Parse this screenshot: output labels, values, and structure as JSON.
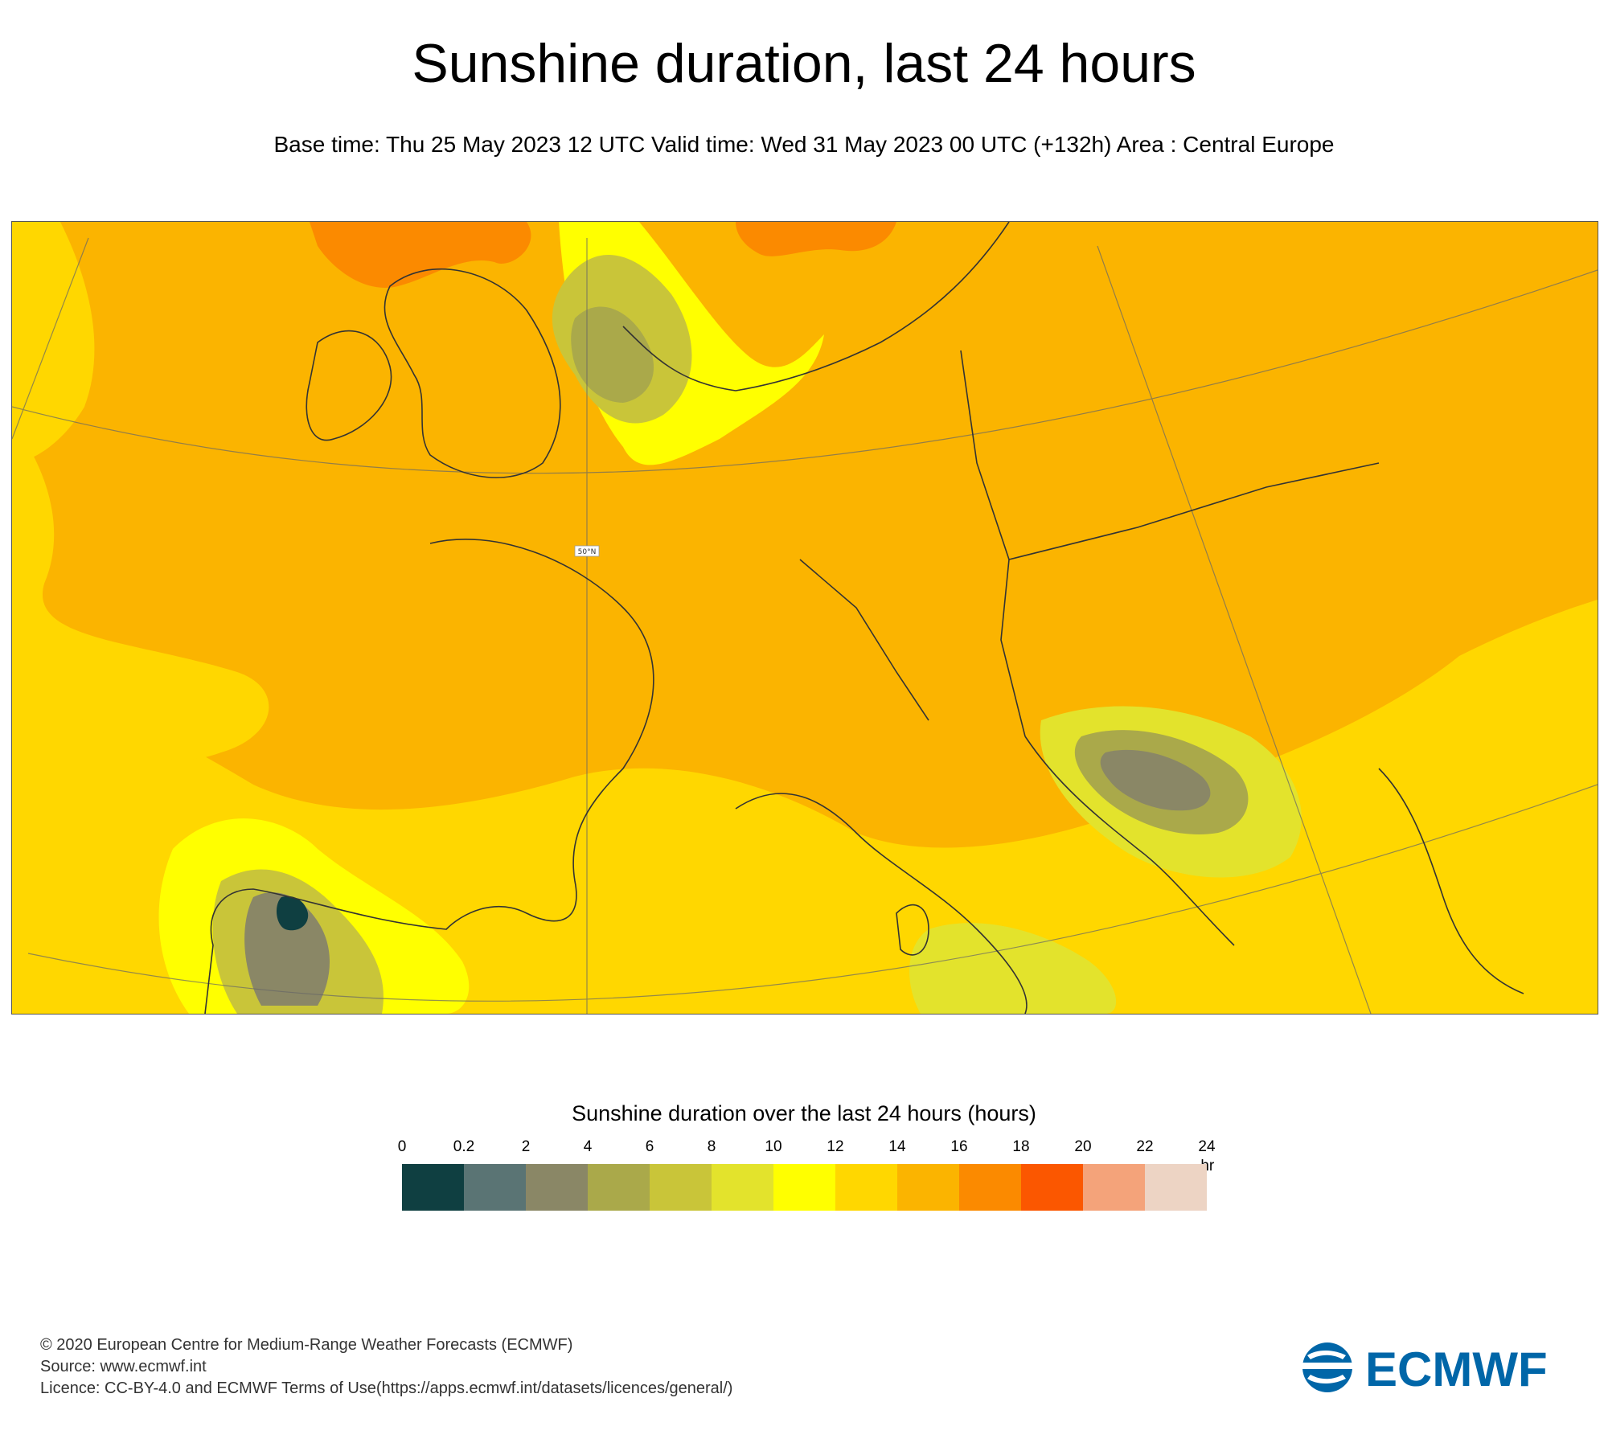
{
  "header": {
    "title": "Sunshine duration, last 24 hours",
    "subtitle": "Base time: Thu 25 May 2023 12 UTC Valid time: Wed 31 May 2023 00 UTC (+132h) Area : Central Europe"
  },
  "map": {
    "area": "Central Europe",
    "latitude_label": "50°N",
    "background_class": "14-16 hr",
    "land_color": "#fbb400"
  },
  "legend": {
    "title": "Sunshine duration over the last 24 hours (hours)",
    "unit": "-hr",
    "ticks": [
      "0",
      "0.2",
      "2",
      "4",
      "6",
      "8",
      "10",
      "12",
      "14",
      "16",
      "18",
      "20",
      "22",
      "24"
    ],
    "colors": [
      "#0f3f41",
      "#5a7474",
      "#8a8766",
      "#aaa94a",
      "#c9c539",
      "#e3e32c",
      "#ffff00",
      "#ffd700",
      "#fbb400",
      "#fb8a00",
      "#fb5700",
      "#f4a37a",
      "#edd4c4"
    ]
  },
  "footer": {
    "copyright": "© 2020 European Centre for Medium-Range Weather Forecasts (ECMWF)",
    "source": "Source: www.ecmwf.int",
    "licence": "Licence: CC-BY-4.0 and ECMWF Terms of Use(https://apps.ecmwf.int/datasets/licences/general/)"
  },
  "logo": {
    "text": "ECMWF",
    "color": "#0066a8"
  }
}
